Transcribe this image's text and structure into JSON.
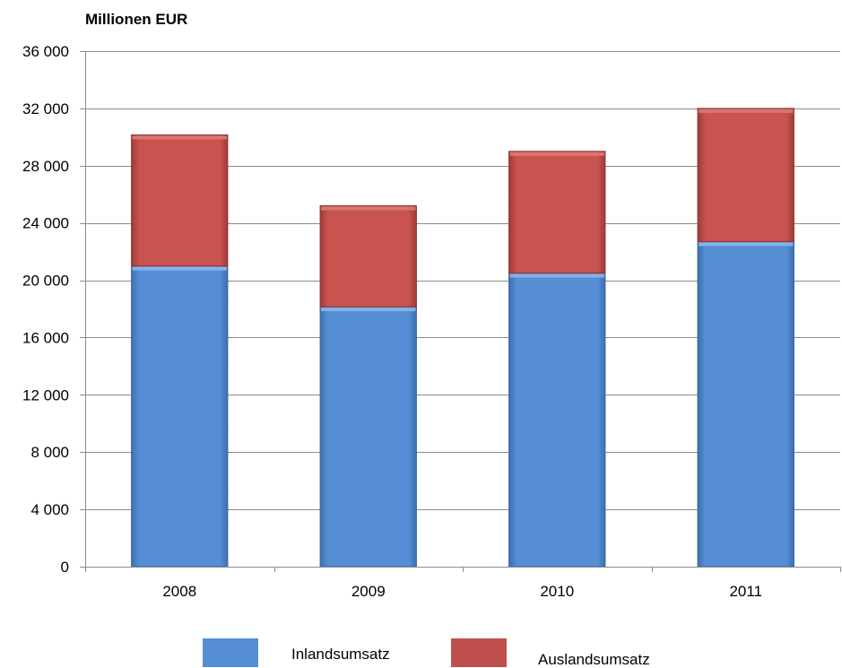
{
  "chart_data": {
    "type": "bar",
    "stacked": true,
    "unit_label": "Millionen EUR",
    "categories": [
      "2008",
      "2009",
      "2010",
      "2011"
    ],
    "series": [
      {
        "name": "Inlandsumsatz",
        "color": "#558ed5",
        "values": [
          21000,
          18150,
          20500,
          22700
        ]
      },
      {
        "name": "Auslandsumsatz",
        "color": "#c0504d",
        "values": [
          9150,
          7050,
          8500,
          9300
        ]
      }
    ],
    "ylim": [
      0,
      36000
    ],
    "yticks": [
      0,
      4000,
      8000,
      12000,
      16000,
      20000,
      24000,
      28000,
      32000,
      36000
    ],
    "ytick_labels": [
      "0",
      "4 000",
      "8 000",
      "12 000",
      "16 000",
      "20 000",
      "24 000",
      "28 000",
      "32 000",
      "36 000"
    ],
    "grid": true,
    "legend_position": "bottom"
  }
}
